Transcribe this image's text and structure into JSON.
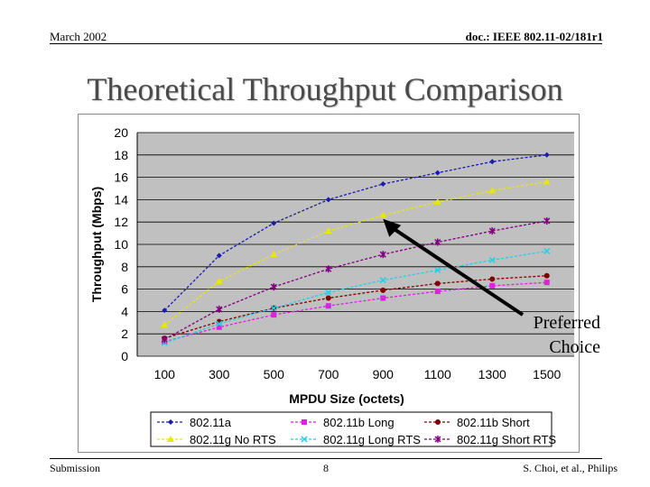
{
  "header": {
    "date": "March 2002",
    "doc": "doc.: IEEE 802.11-02/181r1"
  },
  "title": "Theoretical Throughput Comparison",
  "footer": {
    "left": "Submission",
    "page": "8",
    "right": "S. Choi, et al., Philips"
  },
  "annotation": {
    "line1": "Preferred",
    "line2": "Choice"
  },
  "chart_data": {
    "type": "line",
    "xlabel": "MPDU Size (octets)",
    "ylabel": "Throughput (Mbps)",
    "x": [
      100,
      300,
      500,
      700,
      900,
      1100,
      1300,
      1500
    ],
    "ylim": [
      0,
      20
    ],
    "yticks": [
      0,
      2,
      4,
      6,
      8,
      10,
      12,
      14,
      16,
      18,
      20
    ],
    "grid": true,
    "legend_position": "bottom",
    "series": [
      {
        "name": "802.11a",
        "color": "#1a1ab0",
        "marker": "diamond",
        "values": [
          4.1,
          9.0,
          11.9,
          14.0,
          15.4,
          16.4,
          17.4,
          18.0
        ]
      },
      {
        "name": "802.11b Long",
        "color": "#e020e0",
        "marker": "square",
        "values": [
          1.3,
          2.6,
          3.7,
          4.5,
          5.2,
          5.8,
          6.3,
          6.6
        ]
      },
      {
        "name": "802.11b Short",
        "color": "#800000",
        "marker": "circle",
        "values": [
          1.6,
          3.1,
          4.3,
          5.2,
          5.9,
          6.5,
          6.9,
          7.2
        ]
      },
      {
        "name": "802.11g No RTS",
        "color": "#e8e800",
        "marker": "triangle",
        "values": [
          2.8,
          6.7,
          9.1,
          11.2,
          12.6,
          13.8,
          14.8,
          15.6
        ]
      },
      {
        "name": "802.11g Long RTS",
        "color": "#20d0e8",
        "marker": "x",
        "values": [
          1.2,
          2.9,
          4.3,
          5.7,
          6.8,
          7.7,
          8.6,
          9.4
        ]
      },
      {
        "name": "802.11g Short RTS",
        "color": "#800080",
        "marker": "star",
        "values": [
          1.5,
          4.2,
          6.2,
          7.8,
          9.1,
          10.2,
          11.2,
          12.1
        ]
      }
    ]
  }
}
